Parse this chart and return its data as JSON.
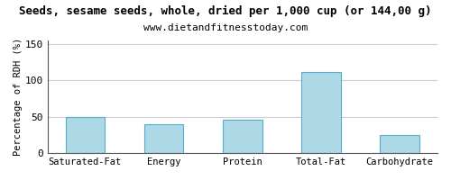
{
  "title": "Seeds, sesame seeds, whole, dried per 1,000 cup (or 144,00 g)",
  "subtitle": "www.dietandfitnesstoday.com",
  "ylabel": "Percentage of RDH (%)",
  "categories": [
    "Saturated-Fat",
    "Energy",
    "Protein",
    "Total-Fat",
    "Carbohydrate"
  ],
  "values": [
    50,
    40,
    46,
    112,
    25
  ],
  "bar_color": "#add8e6",
  "bar_edge_color": "#5aaccc",
  "ylim": [
    0,
    155
  ],
  "yticks": [
    0,
    50,
    100,
    150
  ],
  "title_fontsize": 9,
  "subtitle_fontsize": 8,
  "ylabel_fontsize": 7.5,
  "xtick_fontsize": 7.5,
  "ytick_fontsize": 8,
  "grid_color": "#cccccc",
  "background_color": "#ffffff",
  "border_color": "#555555"
}
